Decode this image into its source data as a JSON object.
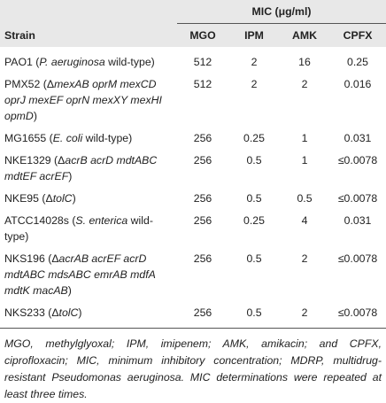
{
  "table": {
    "group_header": "MIC (μg/ml)",
    "columns": [
      "Strain",
      "MGO",
      "IPM",
      "AMK",
      "CPFX"
    ],
    "rows": [
      {
        "strain": [
          {
            "text": "PAO1 ("
          },
          {
            "text": "P. aeruginosa",
            "italic": true
          },
          {
            "text": " wild-type)"
          }
        ],
        "cells": [
          "512",
          "2",
          "16",
          "0.25"
        ]
      },
      {
        "strain": [
          {
            "text": "PMX52 (Δ"
          },
          {
            "text": "mexAB oprM mexCD oprJ mexEF oprN mexXY mexHI opmD",
            "italic": true
          },
          {
            "text": ")"
          }
        ],
        "cells": [
          "512",
          "2",
          "2",
          "0.016"
        ]
      },
      {
        "strain": [
          {
            "text": "MG1655 ("
          },
          {
            "text": "E. coli",
            "italic": true
          },
          {
            "text": " wild-type)"
          }
        ],
        "cells": [
          "256",
          "0.25",
          "1",
          "0.031"
        ]
      },
      {
        "strain": [
          {
            "text": "NKE1329 (Δ"
          },
          {
            "text": "acrB acrD mdtABC mdtEF acrEF",
            "italic": true
          },
          {
            "text": ")"
          }
        ],
        "cells": [
          "256",
          "0.5",
          "1",
          "≤0.0078"
        ]
      },
      {
        "strain": [
          {
            "text": "NKE95 (Δ"
          },
          {
            "text": "tolC",
            "italic": true
          },
          {
            "text": ")"
          }
        ],
        "cells": [
          "256",
          "0.5",
          "0.5",
          "≤0.0078"
        ]
      },
      {
        "strain": [
          {
            "text": "ATCC14028s ("
          },
          {
            "text": "S. enterica",
            "italic": true
          },
          {
            "text": " wild-type)"
          }
        ],
        "cells": [
          "256",
          "0.25",
          "4",
          "0.031"
        ]
      },
      {
        "strain": [
          {
            "text": "NKS196 (Δ"
          },
          {
            "text": "acrAB acrEF acrD mdtABC mdsABC emrAB mdfA mdtK macAB",
            "italic": true
          },
          {
            "text": ")"
          }
        ],
        "cells": [
          "256",
          "0.5",
          "2",
          "≤0.0078"
        ]
      },
      {
        "strain": [
          {
            "text": "NKS233 (Δ"
          },
          {
            "text": "tolC",
            "italic": true
          },
          {
            "text": ")"
          }
        ],
        "cells": [
          "256",
          "0.5",
          "2",
          "≤0.0078"
        ]
      }
    ]
  },
  "footnote": "MGO, methylglyoxal; IPM, imipenem; AMK, amikacin; and CPFX, ciprofloxacin; MIC, minimum inhibitory concentration; MDRP, multidrug-resistant Pseudomonas aeruginosa. MIC determinations were repeated at least three times."
}
